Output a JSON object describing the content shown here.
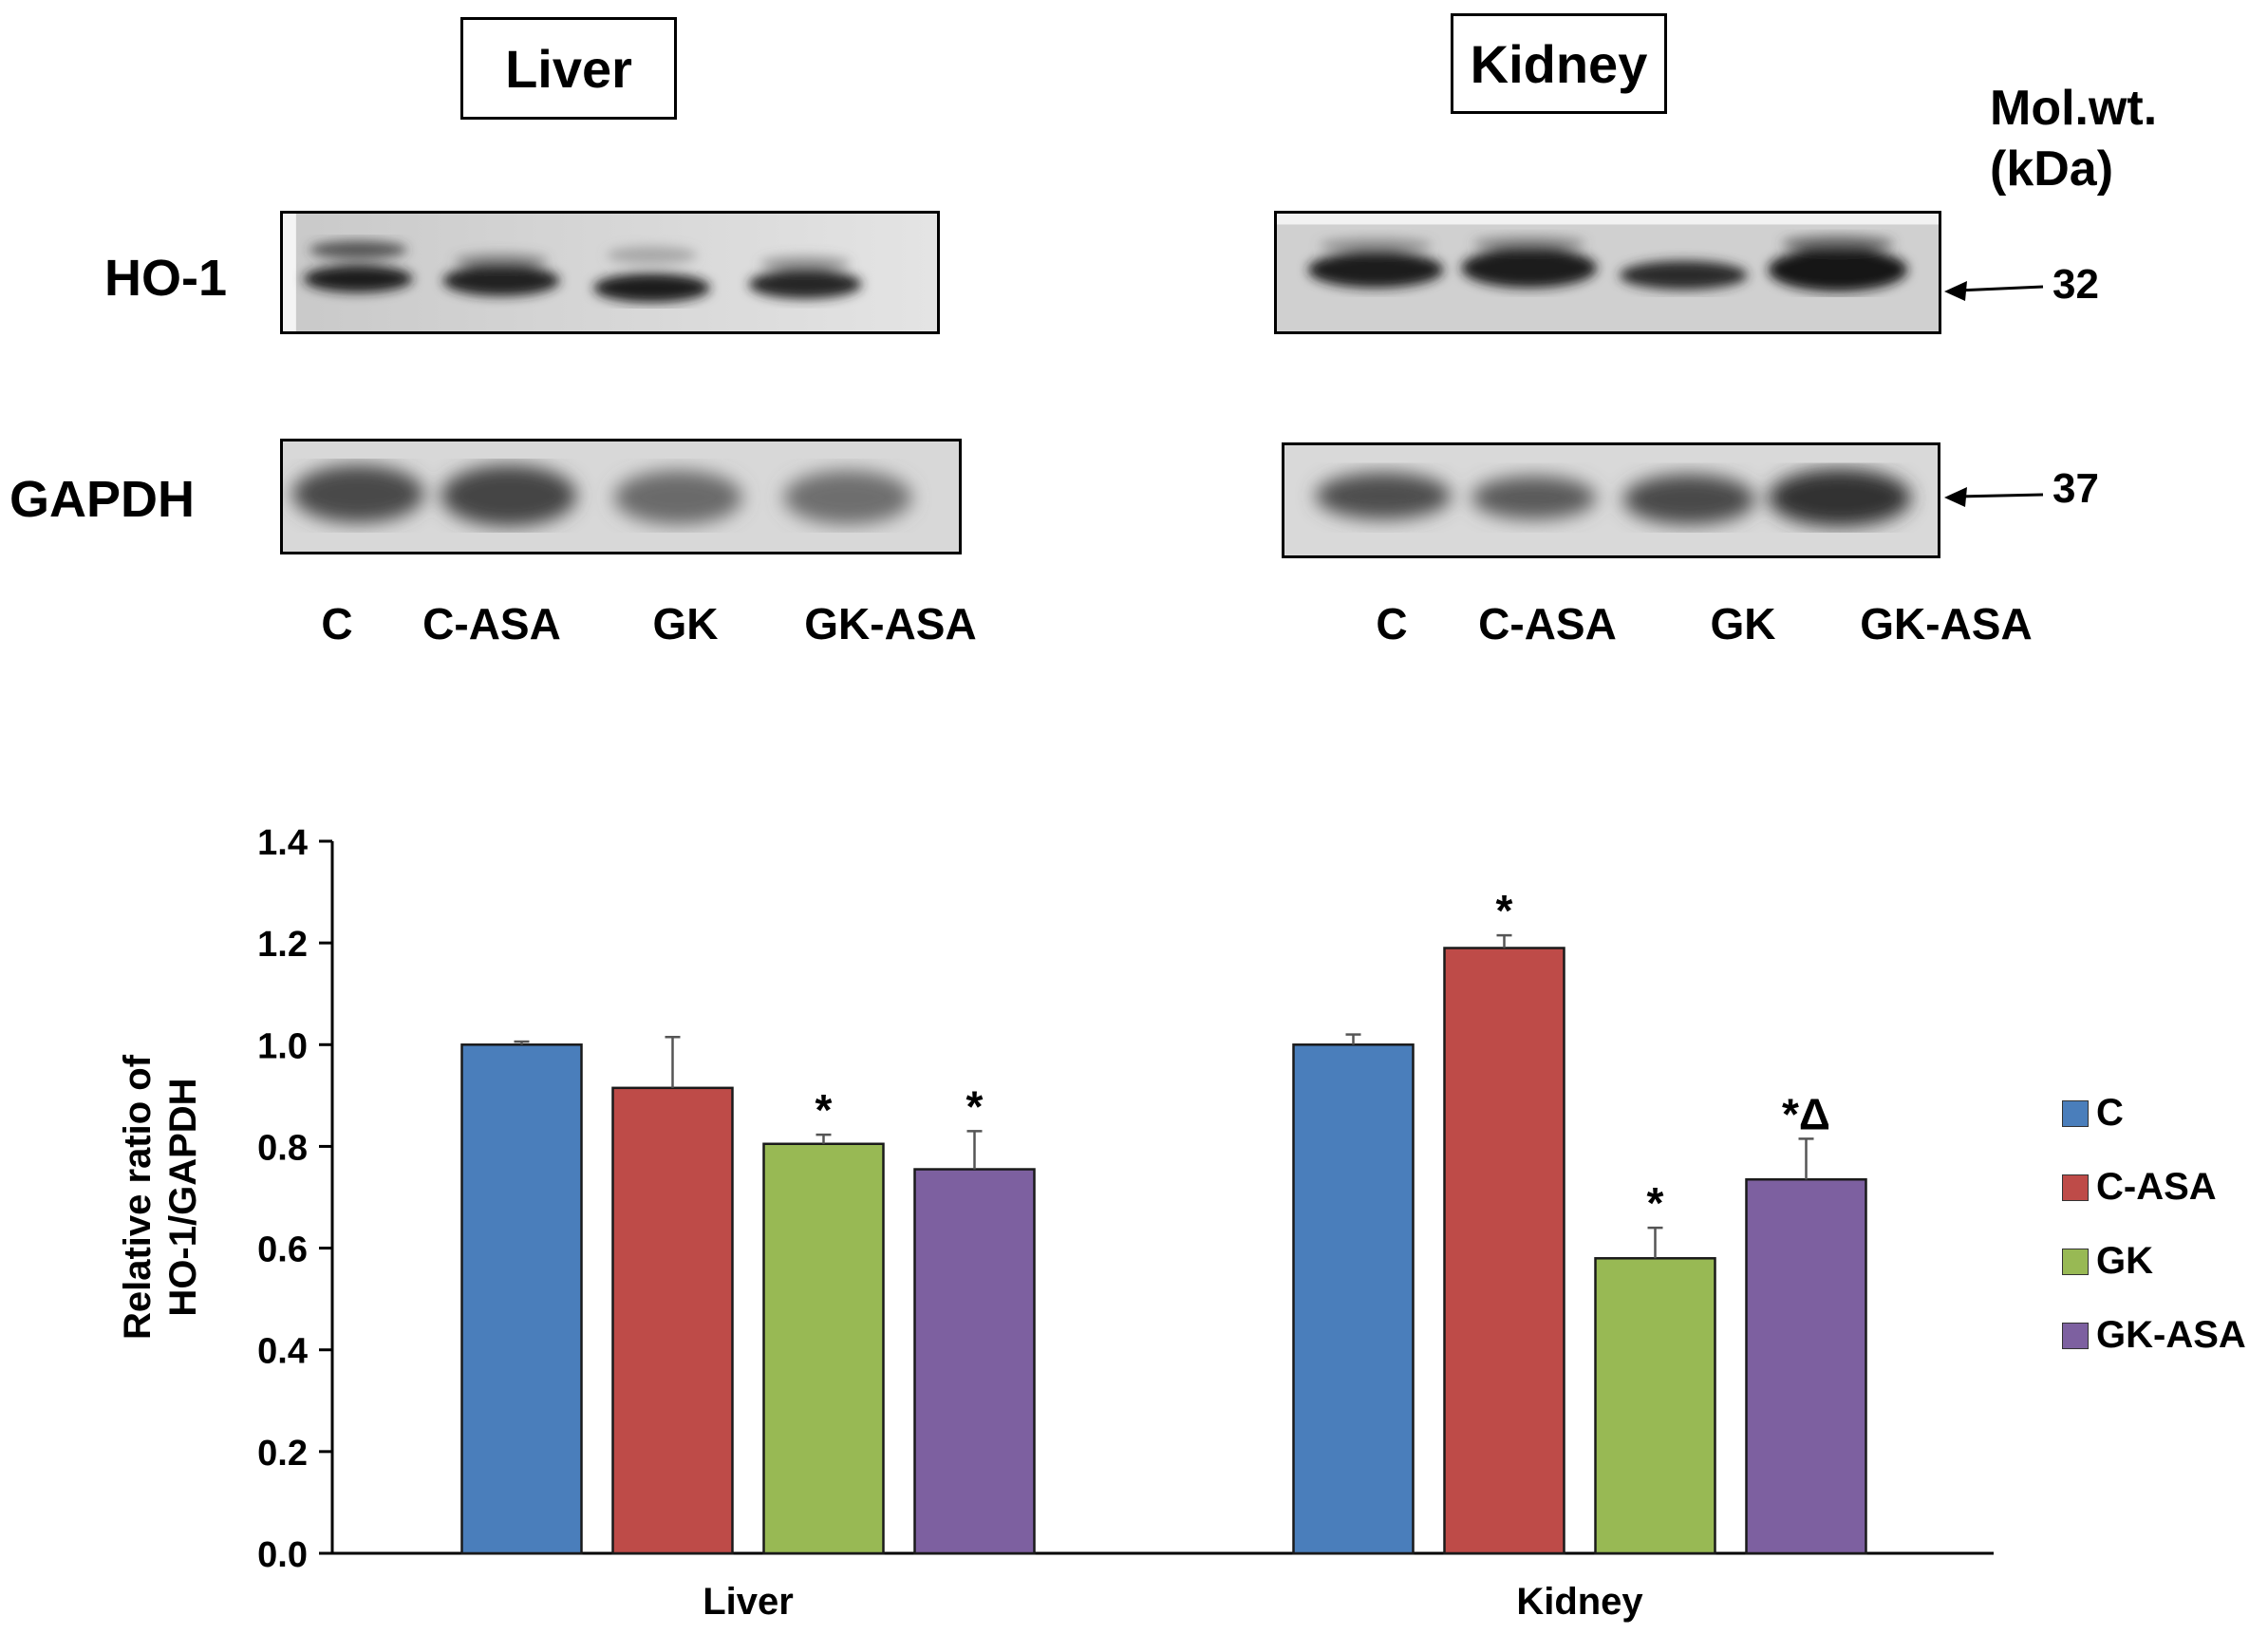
{
  "blot_panel": {
    "tissues": [
      {
        "name": "Liver"
      },
      {
        "name": "Kidney"
      }
    ],
    "row_labels": [
      "HO-1",
      "GAPDH"
    ],
    "lane_labels": [
      "C",
      "C-ASA",
      "GK",
      "GK-ASA"
    ],
    "mol_wt_title_line1": "Mol.wt.",
    "mol_wt_title_line2": "(kDa)",
    "mol_wt_values": [
      "32",
      "37"
    ]
  },
  "chart_data": {
    "type": "bar",
    "categories": [
      "Liver",
      "Kidney"
    ],
    "series": [
      {
        "name": "C",
        "color": "#4a7ebb",
        "values": [
          1.0,
          1.0
        ],
        "errors": [
          0.006,
          0.02
        ],
        "annotations": [
          "",
          ""
        ]
      },
      {
        "name": "C-ASA",
        "color": "#be4b48",
        "values": [
          0.915,
          1.19
        ],
        "errors": [
          0.1,
          0.025
        ],
        "annotations": [
          "",
          "*"
        ]
      },
      {
        "name": "GK",
        "color": "#98b954",
        "values": [
          0.805,
          0.58
        ],
        "errors": [
          0.018,
          0.06
        ],
        "annotations": [
          "*",
          "*"
        ]
      },
      {
        "name": "GK-ASA",
        "color": "#7d60a0",
        "values": [
          0.755,
          0.735
        ],
        "errors": [
          0.075,
          0.08
        ],
        "annotations": [
          "*",
          "*Δ"
        ]
      }
    ],
    "ylabel_line1": "Relative ratio of",
    "ylabel_line2": "HO-1/GAPDH",
    "ylim": [
      0,
      1.4
    ],
    "yticks": [
      "0.0",
      "0.2",
      "0.4",
      "0.6",
      "0.8",
      "1.0",
      "1.2",
      "1.4"
    ],
    "grid": false,
    "legend_position": "right"
  }
}
